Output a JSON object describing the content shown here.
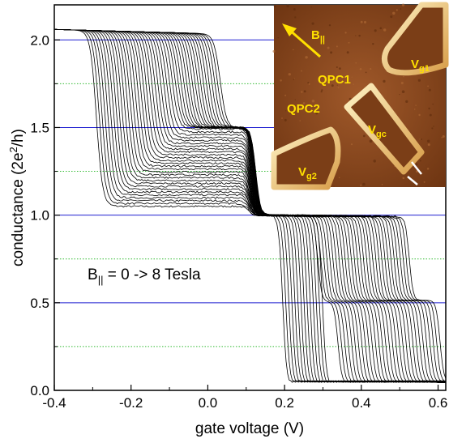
{
  "chart_data": {
    "type": "line",
    "xlabel": "gate voltage (V)",
    "ylabel_main": "conductance (2e",
    "ylabel_sup": "2",
    "ylabel_end": "/h)",
    "xlim": [
      -0.4,
      0.62
    ],
    "ylim": [
      0.0,
      2.2
    ],
    "x_ticks": [
      -0.4,
      -0.2,
      0.0,
      0.2,
      0.4,
      0.6
    ],
    "x_tick_labels": [
      "-0.4",
      "-0.2",
      "0.0",
      "0.2",
      "0.4",
      "0.6"
    ],
    "y_ticks": [
      0.0,
      0.5,
      1.0,
      1.5,
      2.0
    ],
    "y_tick_labels": [
      "0.0",
      "0.5",
      "1.0",
      "1.5",
      "2.0"
    ],
    "guide_lines_solid": [
      0.5,
      1.0,
      1.5,
      2.0
    ],
    "guide_lines_dotted": [
      0.25,
      0.75,
      1.25,
      1.75
    ],
    "grid": false,
    "annotation": {
      "b": "B",
      "sub": "||",
      "rest": " = 0 -> 8 Tesla"
    },
    "n_traces": 45,
    "trace_x_offset_range": [
      0.0,
      0.35
    ],
    "representative_traces": [
      {
        "name": "",
        "x": [
          -0.4,
          -0.32,
          -0.29,
          -0.26,
          -0.2,
          -0.1,
          -0.02,
          0.02,
          0.06,
          0.1,
          0.13,
          0.15,
          0.18,
          0.19,
          0.2,
          0.22
        ],
        "y": [
          2.05,
          2.0,
          1.8,
          1.1,
          1.06,
          1.05,
          1.04,
          1.03,
          1.03,
          1.02,
          1.01,
          0.9,
          0.4,
          0.1,
          0.04,
          0.04
        ]
      },
      {
        "name": "",
        "x": [
          -0.4,
          -0.28,
          -0.24,
          -0.2,
          -0.1,
          0.0,
          0.05,
          0.08,
          0.1,
          0.3,
          0.45,
          0.52,
          0.55,
          0.57,
          0.6,
          0.62
        ],
        "y": [
          2.05,
          2.02,
          1.6,
          1.5,
          1.45,
          1.44,
          1.42,
          1.1,
          1.02,
          0.99,
          0.97,
          0.95,
          0.5,
          0.08,
          0.04,
          0.04
        ]
      }
    ],
    "colors": {
      "trace": "#000000",
      "guide_solid": "#1f1fd0",
      "guide_dotted": "#33bb33"
    }
  },
  "inset": {
    "labels": {
      "b_par": "B",
      "b_par_sub": "||",
      "qpc1": "QPC1",
      "qpc2": "QPC2",
      "vg1": "V",
      "vg1_sub": "g1",
      "vgc": "V",
      "vgc_sub": "gc",
      "vg2": "V",
      "vg2_sub": "g2"
    },
    "colors": {
      "background": "#8a4a1c",
      "gate": "#f5d98a",
      "label": "#ffe000"
    }
  }
}
